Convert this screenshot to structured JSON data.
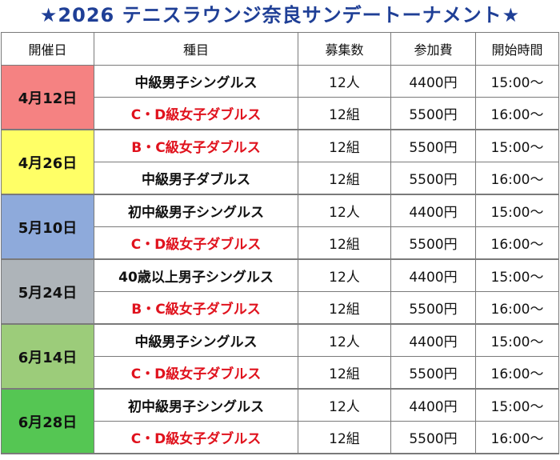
{
  "title": "★2026 テニスラウンジ奈良サンデートーナメント★",
  "headers": [
    "開催日",
    "種目",
    "募集数",
    "参加費",
    "開始時間"
  ],
  "rows": [
    {
      "date": "4月12日",
      "date_color": "#f58282",
      "events": [
        {
          "name": "中級男子シングルス",
          "color": "#111111",
          "capacity": "12人",
          "fee": "4400円",
          "time": "15:00～"
        },
        {
          "name": "C・D級女子ダブルス",
          "color": "#e0121d",
          "capacity": "12組",
          "fee": "5500円",
          "time": "16:00～"
        }
      ]
    },
    {
      "date": "4月26日",
      "date_color": "#ffff66",
      "events": [
        {
          "name": "B・C級女子ダブルス",
          "color": "#e0121d",
          "capacity": "12組",
          "fee": "5500円",
          "time": "15:00～"
        },
        {
          "name": "中級男子ダブルス",
          "color": "#111111",
          "capacity": "12組",
          "fee": "5500円",
          "time": "16:00～"
        }
      ]
    },
    {
      "date": "5月10日",
      "date_color": "#8eaadb",
      "events": [
        {
          "name": "初中級男子シングルス",
          "color": "#111111",
          "capacity": "12人",
          "fee": "4400円",
          "time": "15:00～"
        },
        {
          "name": "C・D級女子ダブルス",
          "color": "#e0121d",
          "capacity": "12組",
          "fee": "5500円",
          "time": "16:00～"
        }
      ]
    },
    {
      "date": "5月24日",
      "date_color": "#aeb4b9",
      "events": [
        {
          "name": "40歳以上男子シングルス",
          "color": "#111111",
          "capacity": "12人",
          "fee": "4400円",
          "time": "15:00～"
        },
        {
          "name": "B・C級女子ダブルス",
          "color": "#e0121d",
          "capacity": "12組",
          "fee": "5500円",
          "time": "16:00～"
        }
      ]
    },
    {
      "date": "6月14日",
      "date_color": "#9ccc7a",
      "events": [
        {
          "name": "中級男子シングルス",
          "color": "#111111",
          "capacity": "12人",
          "fee": "4400円",
          "time": "15:00～"
        },
        {
          "name": "C・D級女子ダブルス",
          "color": "#e0121d",
          "capacity": "12組",
          "fee": "5500円",
          "time": "16:00～"
        }
      ]
    },
    {
      "date": "6月28日",
      "date_color": "#55c653",
      "events": [
        {
          "name": "初中級男子シングルス",
          "color": "#111111",
          "capacity": "12人",
          "fee": "4400円",
          "time": "15:00～"
        },
        {
          "name": "C・D級女子ダブルス",
          "color": "#e0121d",
          "capacity": "12組",
          "fee": "5500円",
          "time": "16:00～"
        }
      ]
    }
  ]
}
